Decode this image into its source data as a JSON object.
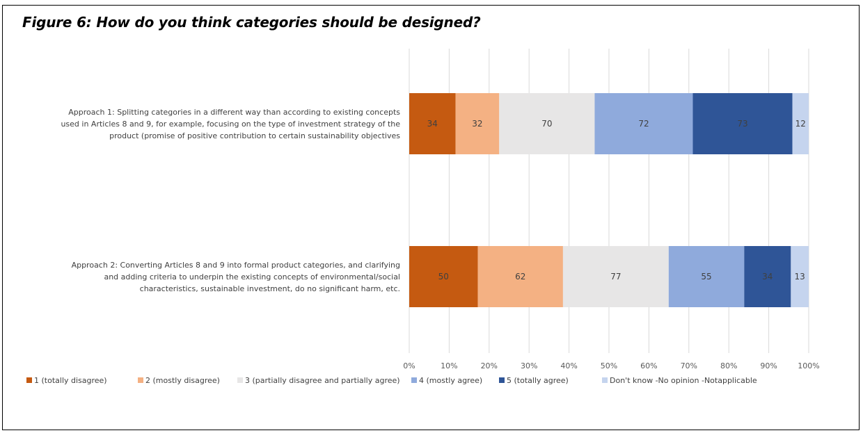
{
  "title": "Figure 6: How do you think categories should be designed?",
  "chart_data": {
    "type": "bar",
    "orientation": "horizontal",
    "stacked": "percent",
    "categories": [
      [
        "Approach 1: Splitting categories in a different way than according to existing concepts",
        "used in Articles 8 and 9, for example, focusing on the type of investment strategy of the",
        "product (promise of positive contribution to certain sustainability objectives"
      ],
      [
        "Approach 2: Converting Articles 8 and 9 into formal product categories, and clarifying",
        "and adding criteria to underpin the existing concepts of environmental/social",
        "characteristics, sustainable investment, do no significant harm, etc."
      ]
    ],
    "series": [
      {
        "name": "1 (totally disagree)",
        "color": "#c55a11",
        "label_color": "#404040",
        "values": [
          34,
          50
        ]
      },
      {
        "name": "2 (mostly disagree)",
        "color": "#f4b183",
        "label_color": "#404040",
        "values": [
          32,
          62
        ]
      },
      {
        "name": "3 (partially disagree and partially agree)",
        "color": "#e7e6e6",
        "label_color": "#404040",
        "values": [
          70,
          77
        ]
      },
      {
        "name": "4 (mostly agree)",
        "color": "#8faadc",
        "label_color": "#404040",
        "values": [
          72,
          55
        ]
      },
      {
        "name": "5 (totally agree)",
        "color": "#2f5597",
        "label_color": "#404040",
        "values": [
          73,
          34
        ]
      },
      {
        "name": "Don't know -No opinion -Notapplicable",
        "color": "#c5d4ee",
        "label_color": "#404040",
        "values": [
          12,
          13
        ]
      }
    ],
    "xaxis_ticks": [
      "0%",
      "10%",
      "20%",
      "30%",
      "40%",
      "50%",
      "60%",
      "70%",
      "80%",
      "90%",
      "100%"
    ],
    "xlim": [
      0,
      100
    ],
    "gridlines": true,
    "gridline_color": "#d9d9d9",
    "legend_position": "bottom"
  }
}
